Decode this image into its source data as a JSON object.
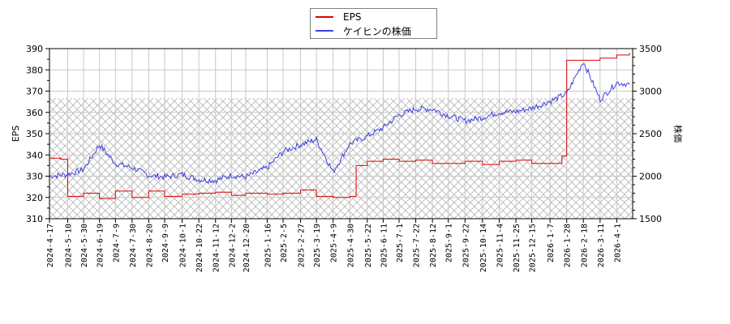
{
  "legend": {
    "items": [
      {
        "label": "EPS",
        "color": "#e00000"
      },
      {
        "label": "ケイヒンの株価",
        "color": "#4040e0"
      }
    ]
  },
  "axes": {
    "left_label": "EPS",
    "right_label": "株価",
    "left_ticks": [
      "390",
      "380",
      "370",
      "360",
      "350",
      "340",
      "330",
      "320",
      "310"
    ],
    "right_ticks": [
      "3500",
      "3000",
      "2500",
      "2000",
      "1500"
    ]
  },
  "chart_data": {
    "type": "line",
    "title": "",
    "xlabel": "",
    "ylabel": "EPS",
    "y2label": "株価",
    "ylim": [
      310,
      390
    ],
    "y2lim": [
      1500,
      3500
    ],
    "grid": true,
    "legend_position": "top-center",
    "x_tick_labels": [
      "2024-4-17",
      "2024-5-10",
      "2024-5-30",
      "2024-6-19",
      "2024-7-9",
      "2024-7-30",
      "2024-8-20",
      "2024-9-9",
      "2024-10-1",
      "2024-10-22",
      "2024-11-12",
      "2024-12-2",
      "2024-12-20",
      "2025-1-16",
      "2025-2-5",
      "2025-2-27",
      "2025-3-19",
      "2025-4-9",
      "2025-4-30",
      "2025-5-22",
      "2025-6-11",
      "2025-7-1",
      "2025-7-22",
      "2025-8-12",
      "2025-9-1",
      "2025-9-22",
      "2025-10-14",
      "2025-11-4",
      "2025-11-25",
      "2025-12-15",
      "2026-1-7",
      "2026-1-28",
      "2026-2-18",
      "2026-3-11",
      "2026-4-1"
    ],
    "hatched_region": {
      "from_eps": 310,
      "to_eps": 366.7
    },
    "series": [
      {
        "name": "EPS",
        "axis": "left",
        "color": "#e00000",
        "x": [
          "2024-4-17",
          "2024-5-1",
          "2024-5-10",
          "2024-5-30",
          "2024-6-19",
          "2024-7-9",
          "2024-7-30",
          "2024-8-20",
          "2024-9-9",
          "2024-10-1",
          "2024-10-22",
          "2024-11-12",
          "2024-12-2",
          "2024-12-20",
          "2025-1-16",
          "2025-2-5",
          "2025-2-27",
          "2025-3-19",
          "2025-4-9",
          "2025-4-30",
          "2025-5-8",
          "2025-5-22",
          "2025-6-11",
          "2025-7-1",
          "2025-7-22",
          "2025-8-12",
          "2025-9-1",
          "2025-9-22",
          "2025-10-14",
          "2025-11-4",
          "2025-11-25",
          "2025-12-15",
          "2026-1-7",
          "2026-1-22",
          "2026-1-28",
          "2026-2-18",
          "2026-3-11",
          "2026-4-1",
          "2026-4-17"
        ],
        "values": [
          338.5,
          338,
          320.5,
          322,
          319.5,
          323,
          320,
          323,
          320.5,
          321.5,
          322,
          322.5,
          321,
          322,
          321.5,
          322,
          323.5,
          320.5,
          320,
          320.5,
          335,
          337,
          338,
          337,
          337.5,
          336,
          336,
          337,
          335.5,
          337,
          337.5,
          336,
          336,
          339.5,
          384.5,
          384.5,
          385.5,
          387,
          388
        ]
      },
      {
        "name": "ケイヒンの株価",
        "axis": "right",
        "color": "#4040e0",
        "x": [
          "2024-4-17",
          "2024-5-10",
          "2024-5-30",
          "2024-6-19",
          "2024-7-9",
          "2024-7-30",
          "2024-8-20",
          "2024-9-9",
          "2024-10-1",
          "2024-10-22",
          "2024-11-12",
          "2024-12-2",
          "2024-12-20",
          "2025-1-16",
          "2025-2-5",
          "2025-2-27",
          "2025-3-19",
          "2025-4-9",
          "2025-4-30",
          "2025-5-22",
          "2025-6-11",
          "2025-7-1",
          "2025-7-22",
          "2025-8-12",
          "2025-9-1",
          "2025-9-22",
          "2025-10-14",
          "2025-11-4",
          "2025-11-25",
          "2025-12-15",
          "2026-1-7",
          "2026-1-28",
          "2026-2-18",
          "2026-3-11",
          "2026-4-1",
          "2026-4-17"
        ],
        "values": [
          2000,
          2020,
          2080,
          2370,
          2150,
          2100,
          2010,
          1990,
          2020,
          1960,
          1950,
          2010,
          1990,
          2100,
          2290,
          2370,
          2430,
          2050,
          2380,
          2470,
          2570,
          2720,
          2790,
          2790,
          2710,
          2650,
          2690,
          2750,
          2760,
          2800,
          2880,
          2970,
          3350,
          2900,
          3100,
          3080
        ]
      }
    ]
  }
}
